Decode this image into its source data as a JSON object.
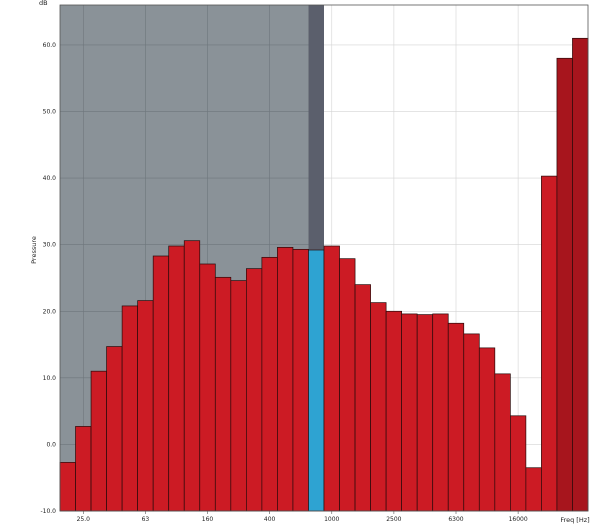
{
  "chart_data": {
    "type": "bar",
    "y_unit": "dB",
    "ylabel": "Pressure",
    "xlabel": "Freq [Hz]",
    "ylim": [
      -10,
      66
    ],
    "yticks": [
      -10,
      0,
      10,
      20,
      30,
      40,
      50,
      60
    ],
    "ytick_labels": [
      "-10.0",
      "0.0",
      "10.0",
      "20.0",
      "30.0",
      "40.0",
      "50.0",
      "60.0"
    ],
    "x_tick_labels": [
      {
        "band": 1,
        "label": "25.0"
      },
      {
        "band": 5,
        "label": "63"
      },
      {
        "band": 9,
        "label": "160"
      },
      {
        "band": 13,
        "label": "400"
      },
      {
        "band": 17,
        "label": "1000"
      },
      {
        "band": 21,
        "label": "2500"
      },
      {
        "band": 25,
        "label": "6300"
      },
      {
        "band": 29,
        "label": "16000"
      }
    ],
    "grid": true,
    "shaded_band_range": [
      0,
      16
    ],
    "highlight_band": 16,
    "dark_bar_from_band": 32,
    "values": [
      -2.7,
      2.7,
      11.0,
      14.7,
      20.8,
      21.6,
      28.3,
      29.8,
      30.6,
      27.1,
      25.1,
      24.6,
      26.4,
      28.1,
      29.6,
      29.3,
      29.2,
      29.8,
      27.9,
      24.0,
      21.3,
      20.0,
      19.6,
      19.5,
      19.6,
      18.2,
      16.6,
      14.5,
      10.6,
      4.3,
      -3.5,
      40.3,
      58.0,
      61.0
    ],
    "colors": {
      "bar": "#cc1b24",
      "bar_dark": "#a7151d",
      "bar_highlight": "#2ea3d2",
      "shade": "#8a9298",
      "shade_dark": "#5b5f6c",
      "grid_on_shade": "#6e767c",
      "grid": "#d4d4d4"
    }
  }
}
